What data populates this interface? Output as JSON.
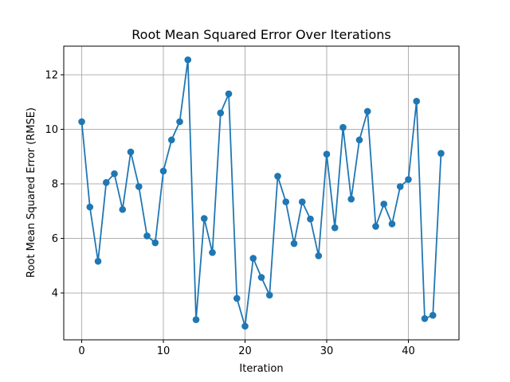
{
  "chart_data": {
    "type": "line",
    "title": "Root Mean Squared Error Over Iterations",
    "xlabel": "Iteration",
    "ylabel": "Root Mean Squared Error (RMSE)",
    "xlim": [
      -2.2,
      46.2
    ],
    "ylim": [
      2.28,
      13.05
    ],
    "xticks": [
      0,
      10,
      20,
      30,
      40
    ],
    "yticks": [
      4,
      6,
      8,
      10,
      12
    ],
    "grid": true,
    "marker": "circle",
    "color": "#1f77b4",
    "series": [
      {
        "x": [
          0,
          1,
          2,
          3,
          4,
          5,
          6,
          7,
          8,
          9,
          10,
          11,
          12,
          13,
          14,
          15,
          16,
          17,
          18,
          19,
          20,
          21,
          22,
          23,
          24,
          25,
          26,
          27,
          28,
          29,
          30,
          31,
          32,
          33,
          34,
          35,
          36,
          37,
          38,
          39,
          40,
          41,
          42,
          43,
          44
        ],
        "values": [
          10.28,
          7.15,
          5.16,
          8.05,
          8.37,
          7.06,
          9.17,
          7.9,
          6.09,
          5.84,
          8.47,
          9.61,
          10.28,
          12.55,
          3.02,
          6.73,
          5.48,
          10.6,
          11.3,
          3.8,
          2.78,
          5.27,
          4.57,
          3.92,
          8.28,
          7.34,
          5.81,
          7.34,
          6.71,
          5.36,
          9.09,
          6.39,
          10.07,
          7.44,
          9.61,
          10.66,
          6.44,
          7.26,
          6.53,
          7.9,
          8.16,
          11.03,
          3.06,
          3.18,
          9.12
        ]
      }
    ]
  }
}
